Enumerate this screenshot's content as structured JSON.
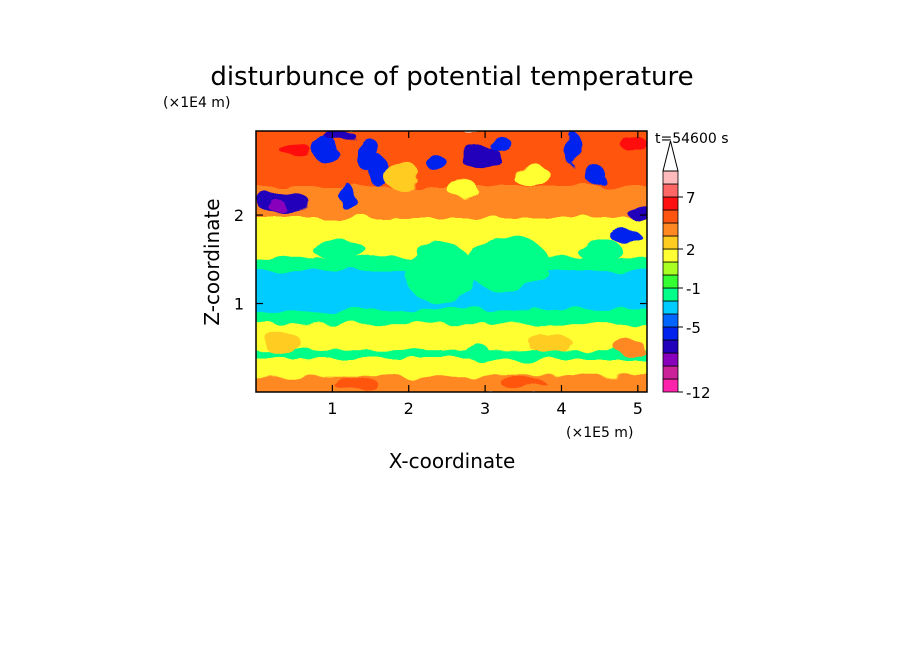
{
  "chart_data": {
    "type": "heatmap",
    "title": "disturbunce of potential temperature",
    "xlabel": "X-coordinate",
    "ylabel": "Z-coordinate",
    "x_unit": "(×1E5 m)",
    "z_unit": "(×1E4 m)",
    "time_label": "t=54600 s",
    "xlim": [
      0,
      5.12
    ],
    "ylim": [
      0,
      2.95
    ],
    "x_ticks": [
      "1",
      "2",
      "3",
      "4",
      "5"
    ],
    "x_tick_values": [
      1,
      2,
      3,
      4,
      5
    ],
    "y_ticks": [
      "1",
      "2"
    ],
    "y_tick_values": [
      1,
      2
    ],
    "colorbar": {
      "tick_labels": [
        "-12",
        "-5",
        "-1",
        "2",
        "7"
      ],
      "tick_level_index": [
        0,
        5,
        8,
        11,
        15
      ],
      "level_colors": [
        "#ff22aa",
        "#cc2299",
        "#8800bb",
        "#2200bb",
        "#0022ee",
        "#0066ff",
        "#00ccff",
        "#00ff88",
        "#33ff33",
        "#aaff22",
        "#ffff33",
        "#ffcc22",
        "#ff8822",
        "#ff5511",
        "#ff1111",
        "#ff6666",
        "#ffbbbb"
      ],
      "extend_max": true
    },
    "bands": [
      {
        "z": [
          2.3,
          2.95
        ],
        "level": 13
      },
      {
        "z": [
          1.95,
          2.3
        ],
        "level": 12
      },
      {
        "z": [
          1.5,
          1.95
        ],
        "level": 10
      },
      {
        "z": [
          1.35,
          1.5
        ],
        "level": 7
      },
      {
        "z": [
          0.9,
          1.35
        ],
        "level": 6
      },
      {
        "z": [
          0.75,
          0.9
        ],
        "level": 7
      },
      {
        "z": [
          0.45,
          0.75
        ],
        "level": 10
      },
      {
        "z": [
          0.35,
          0.45
        ],
        "level": 7
      },
      {
        "z": [
          0.15,
          0.35
        ],
        "level": 10
      },
      {
        "z": [
          0.0,
          0.15
        ],
        "level": 12
      }
    ],
    "features": [
      {
        "x": 0.35,
        "z": 2.15,
        "rx": 0.35,
        "rz": 0.12,
        "level": 3
      },
      {
        "x": 0.28,
        "z": 2.1,
        "rx": 0.12,
        "rz": 0.06,
        "level": 2
      },
      {
        "x": 0.9,
        "z": 2.75,
        "rx": 0.18,
        "rz": 0.14,
        "level": 4
      },
      {
        "x": 1.1,
        "z": 2.9,
        "rx": 0.2,
        "rz": 0.06,
        "level": 3
      },
      {
        "x": 0.5,
        "z": 2.75,
        "rx": 0.2,
        "rz": 0.08,
        "level": 14
      },
      {
        "x": 1.45,
        "z": 2.7,
        "rx": 0.15,
        "rz": 0.2,
        "level": 4
      },
      {
        "x": 1.6,
        "z": 2.5,
        "rx": 0.12,
        "rz": 0.18,
        "level": 4
      },
      {
        "x": 1.2,
        "z": 2.2,
        "rx": 0.1,
        "rz": 0.15,
        "level": 4
      },
      {
        "x": 2.95,
        "z": 2.65,
        "rx": 0.28,
        "rz": 0.12,
        "level": 3
      },
      {
        "x": 3.2,
        "z": 2.8,
        "rx": 0.15,
        "rz": 0.08,
        "level": 4
      },
      {
        "x": 2.35,
        "z": 2.6,
        "rx": 0.12,
        "rz": 0.1,
        "level": 4
      },
      {
        "x": 4.15,
        "z": 2.75,
        "rx": 0.1,
        "rz": 0.2,
        "level": 4
      },
      {
        "x": 4.45,
        "z": 2.45,
        "rx": 0.12,
        "rz": 0.12,
        "level": 4
      },
      {
        "x": 5.0,
        "z": 2.05,
        "rx": 0.15,
        "rz": 0.1,
        "level": 3
      },
      {
        "x": 4.85,
        "z": 1.75,
        "rx": 0.2,
        "rz": 0.08,
        "level": 4
      },
      {
        "x": 4.95,
        "z": 2.8,
        "rx": 0.18,
        "rz": 0.08,
        "level": 14
      },
      {
        "x": 3.6,
        "z": 2.45,
        "rx": 0.25,
        "rz": 0.12,
        "level": 10
      },
      {
        "x": 1.9,
        "z": 2.45,
        "rx": 0.25,
        "rz": 0.15,
        "level": 11
      },
      {
        "x": 2.7,
        "z": 2.3,
        "rx": 0.2,
        "rz": 0.1,
        "level": 10
      },
      {
        "x": 2.4,
        "z": 1.35,
        "rx": 0.45,
        "rz": 0.35,
        "level": 7
      },
      {
        "x": 3.3,
        "z": 1.45,
        "rx": 0.55,
        "rz": 0.3,
        "level": 7
      },
      {
        "x": 1.1,
        "z": 1.6,
        "rx": 0.35,
        "rz": 0.1,
        "level": 7
      },
      {
        "x": 4.5,
        "z": 1.6,
        "rx": 0.3,
        "rz": 0.12,
        "level": 7
      },
      {
        "x": 0.35,
        "z": 0.55,
        "rx": 0.25,
        "rz": 0.12,
        "level": 11
      },
      {
        "x": 3.85,
        "z": 0.55,
        "rx": 0.3,
        "rz": 0.1,
        "level": 11
      },
      {
        "x": 4.9,
        "z": 0.5,
        "rx": 0.2,
        "rz": 0.08,
        "level": 12
      },
      {
        "x": 2.9,
        "z": 0.45,
        "rx": 0.15,
        "rz": 0.1,
        "level": 7
      },
      {
        "x": 1.3,
        "z": 0.1,
        "rx": 0.3,
        "rz": 0.05,
        "level": 13
      },
      {
        "x": 3.5,
        "z": 0.1,
        "rx": 0.3,
        "rz": 0.05,
        "level": 13
      }
    ]
  }
}
